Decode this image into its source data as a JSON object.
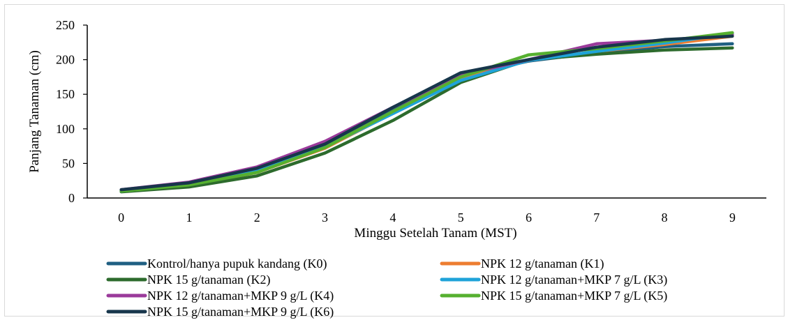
{
  "chart_data": {
    "type": "line",
    "xlabel": "Minggu Setelah Tanam (MST)",
    "ylabel": "Panjang Tanaman (cm)",
    "x": [
      0,
      1,
      2,
      3,
      4,
      5,
      6,
      7,
      8,
      9
    ],
    "ylim": [
      0,
      250
    ],
    "yticks": [
      0,
      50,
      100,
      150,
      200,
      250
    ],
    "grid": false,
    "legend_position": "bottom",
    "series": [
      {
        "name": "Kontrol/hanya pupuk kandang (K0)",
        "color": "#1f5f82",
        "values": [
          11,
          21,
          40,
          76,
          126,
          176,
          198,
          210,
          219,
          223
        ]
      },
      {
        "name": "NPK 12 g/tanaman (K1)",
        "color": "#ed7d31",
        "values": [
          10,
          18,
          37,
          72,
          123,
          172,
          199,
          212,
          222,
          234
        ]
      },
      {
        "name": "NPK 15 g/tanaman (K2)",
        "color": "#2d6b2d",
        "values": [
          9,
          16,
          32,
          65,
          112,
          167,
          200,
          208,
          214,
          217
        ]
      },
      {
        "name": "NPK 12 g/tanaman+MKP 7 g/L (K3)",
        "color": "#1fa3d9",
        "values": [
          10,
          20,
          39,
          74,
          122,
          170,
          199,
          212,
          224,
          238
        ]
      },
      {
        "name": "NPK 12 g/tanaman+MKP 9 g/L (K4)",
        "color": "#9b3a9b",
        "values": [
          12,
          23,
          45,
          82,
          131,
          178,
          200,
          223,
          228,
          236
        ]
      },
      {
        "name": "NPK 15 g/tanaman+MKP 7 g/L (K5)",
        "color": "#56b030",
        "values": [
          10,
          19,
          37,
          73,
          125,
          175,
          207,
          216,
          227,
          239
        ]
      },
      {
        "name": "NPK 15 g/tanaman+MKP 9 g/L (K6)",
        "color": "#17364b",
        "values": [
          12,
          22,
          43,
          78,
          131,
          181,
          200,
          218,
          229,
          234
        ]
      }
    ]
  }
}
